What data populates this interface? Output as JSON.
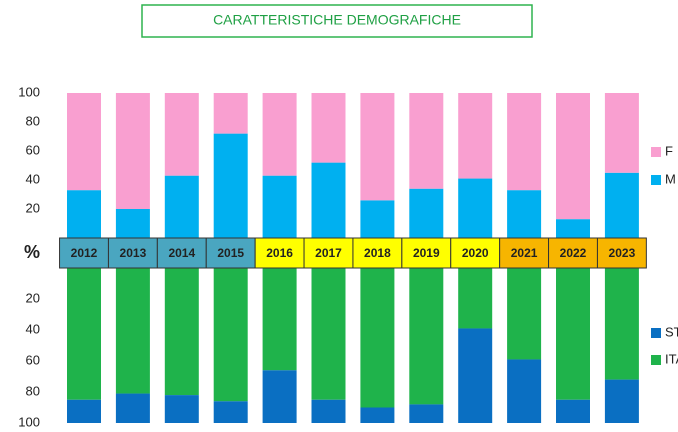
{
  "chart_data": [
    {
      "type": "stacked-bar",
      "title": "CARATTERISTICHE DEMOGRAFICHE",
      "unit_label": "%",
      "categories": [
        "2012",
        "2013",
        "2014",
        "2015",
        "2016",
        "2017",
        "2018",
        "2019",
        "2020",
        "2021",
        "2022",
        "2023"
      ],
      "category_colors": [
        "#4aa6c0",
        "#4aa6c0",
        "#4aa6c0",
        "#4aa6c0",
        "#ffff00",
        "#ffff00",
        "#ffff00",
        "#ffff00",
        "#ffff00",
        "#f7b500",
        "#f7b500",
        "#f7b500"
      ],
      "series": [
        {
          "name": "M",
          "color": "#00b0f0",
          "values": [
            33,
            20,
            43,
            72,
            43,
            52,
            26,
            34,
            41,
            33,
            13,
            45
          ]
        },
        {
          "name": "F",
          "color": "#f99fd0",
          "values": [
            67,
            80,
            57,
            28,
            57,
            48,
            74,
            66,
            59,
            67,
            87,
            55
          ]
        }
      ],
      "ylim": [
        0,
        100
      ],
      "yticks": [
        20,
        40,
        60,
        80,
        100
      ]
    },
    {
      "type": "stacked-bar",
      "inverted": true,
      "series": [
        {
          "name": "ITA",
          "color": "#1fb34b",
          "values": [
            85,
            81,
            82,
            86,
            66,
            85,
            90,
            88,
            39,
            59,
            85,
            72
          ]
        },
        {
          "name": "ST",
          "color": "#0a6fc2",
          "values": [
            15,
            19,
            18,
            14,
            34,
            15,
            10,
            12,
            61,
            41,
            15,
            28
          ]
        }
      ],
      "ylim": [
        0,
        100
      ],
      "yticks": [
        20,
        40,
        60,
        80,
        100
      ]
    }
  ]
}
